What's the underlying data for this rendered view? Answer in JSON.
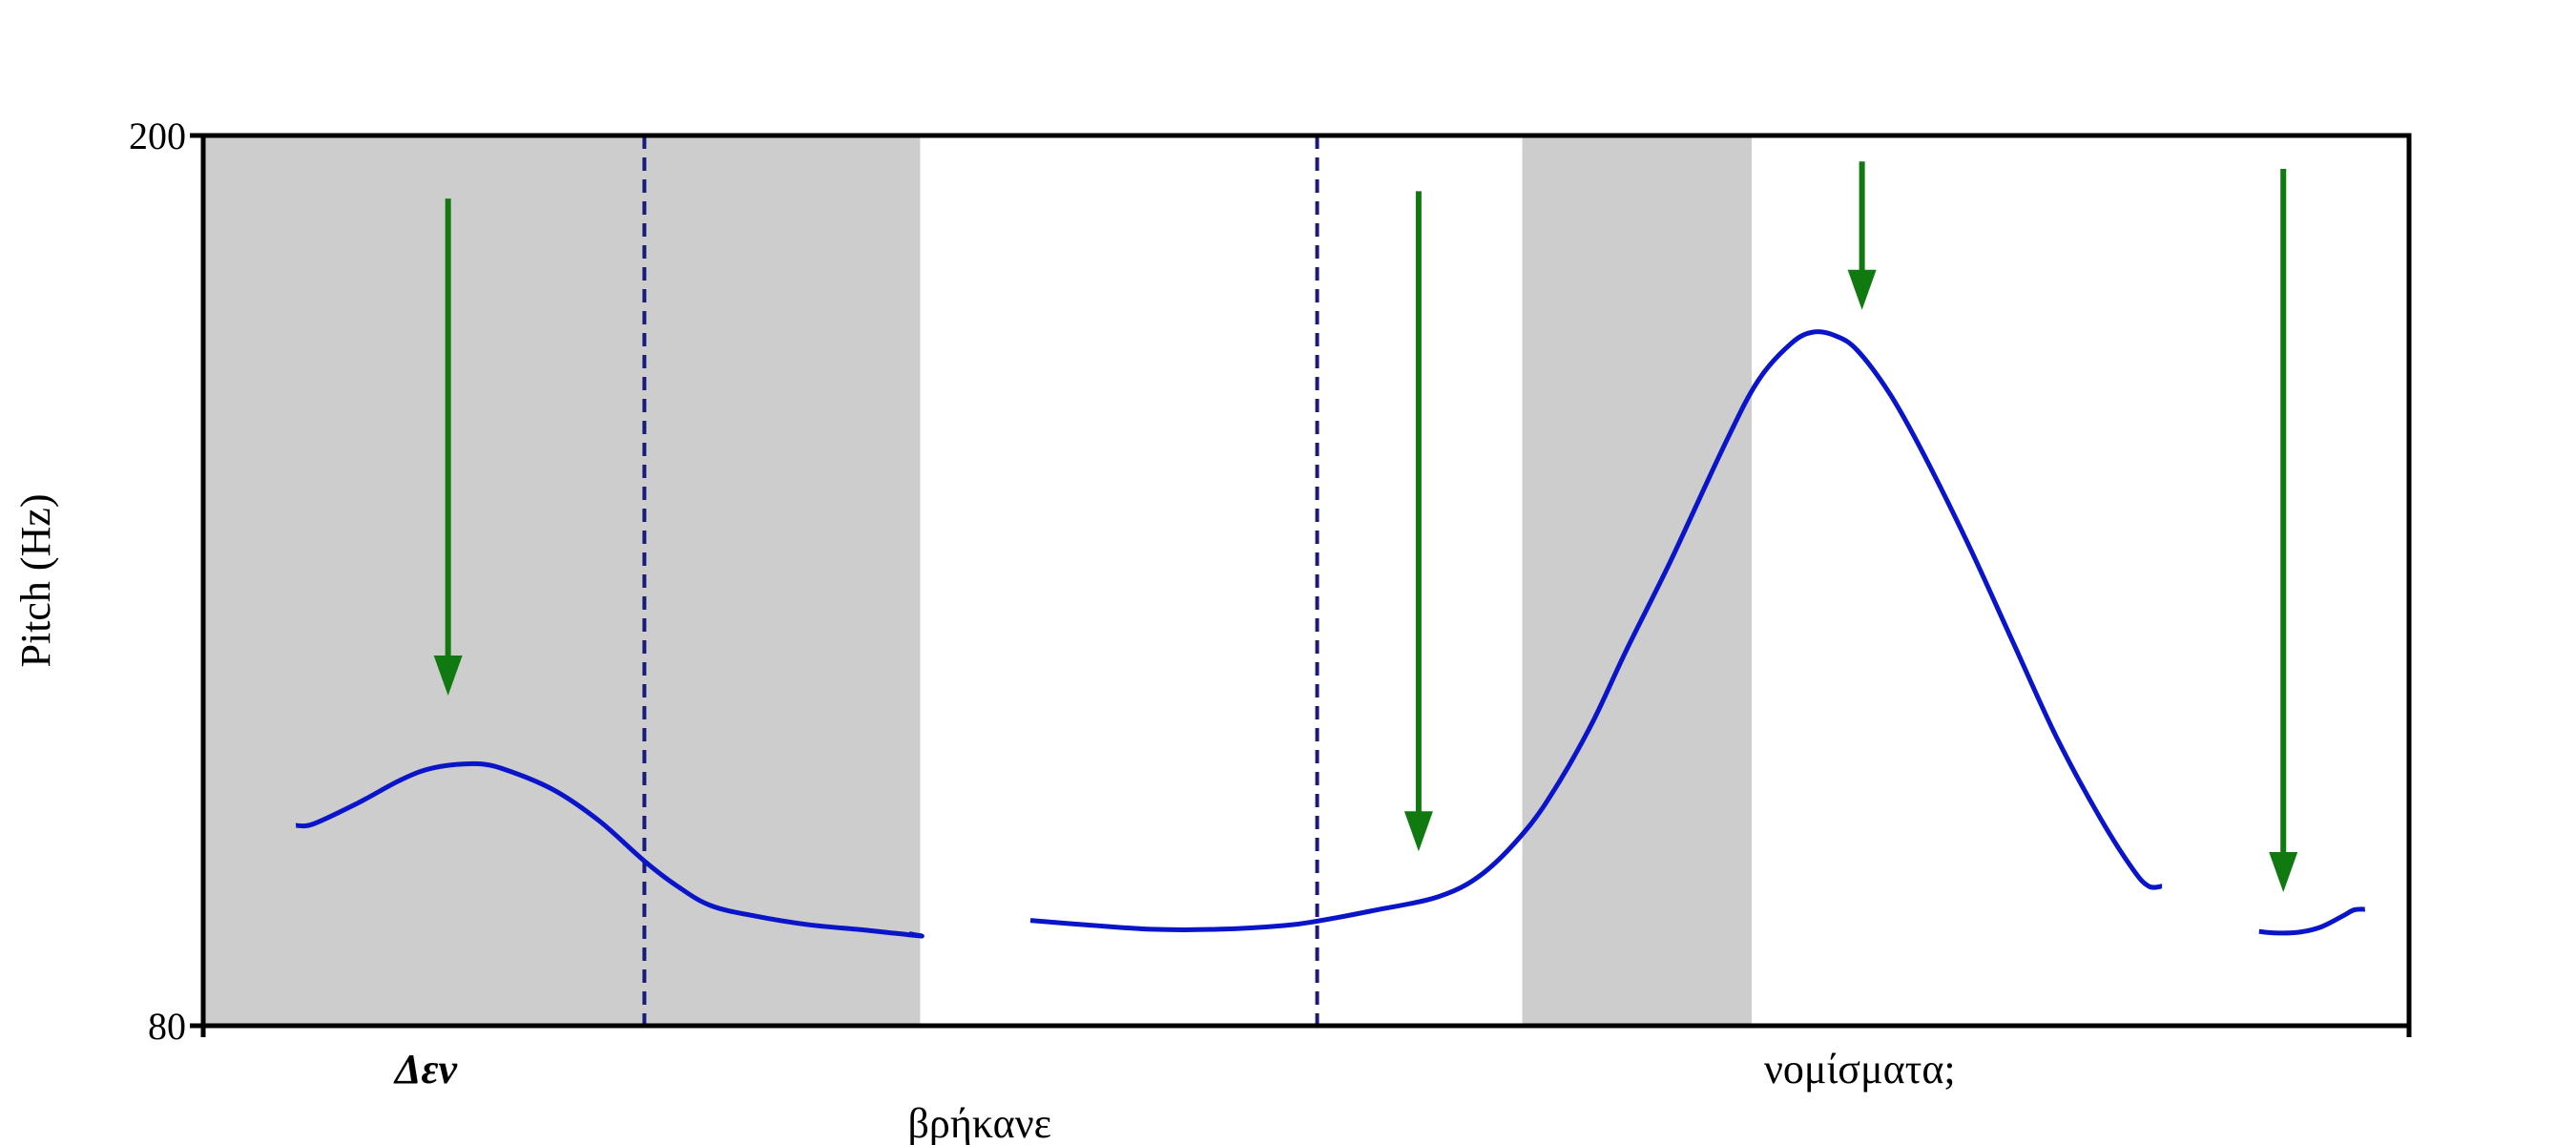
{
  "chart_data": {
    "type": "line",
    "title": "",
    "xlabel": "",
    "ylabel": "Pitch (Hz)",
    "xlim": [
      0,
      1
    ],
    "ylim": [
      80,
      200
    ],
    "yticks": [
      "80",
      "200"
    ],
    "grid": false,
    "legend": "none",
    "colors": {
      "contour": "#0a14c8",
      "boundary": "#1a1a7a",
      "shade": "#cdcdcd",
      "arrow": "#107a10"
    },
    "shaded_regions": [
      {
        "x_start": 0.0,
        "x_end": 0.325
      },
      {
        "x_start": 0.598,
        "x_end": 0.702
      }
    ],
    "boundaries": [
      0.2,
      0.505
    ],
    "series": [
      {
        "segments": [
          [
            [
              0.042,
              107
            ],
            [
              0.05,
              107.2
            ],
            [
              0.07,
              110
            ],
            [
              0.09,
              113.2
            ],
            [
              0.105,
              114.8
            ],
            [
              0.125,
              115.3
            ],
            [
              0.14,
              114.2
            ],
            [
              0.16,
              111.6
            ],
            [
              0.18,
              107.5
            ],
            [
              0.2,
              102.2
            ],
            [
              0.215,
              98.8
            ],
            [
              0.23,
              96.2
            ],
            [
              0.25,
              94.8
            ],
            [
              0.275,
              93.6
            ],
            [
              0.3,
              92.9
            ],
            [
              0.325,
              92.1
            ],
            [
              0.32,
              92.4
            ]
          ],
          [
            [
              0.375,
              94.2
            ],
            [
              0.4,
              93.6
            ],
            [
              0.43,
              93.0
            ],
            [
              0.46,
              93.0
            ],
            [
              0.49,
              93.5
            ],
            [
              0.505,
              94.1
            ],
            [
              0.53,
              95.5
            ],
            [
              0.56,
              97.4
            ],
            [
              0.58,
              100.5
            ],
            [
              0.6,
              106.5
            ],
            [
              0.615,
              113
            ],
            [
              0.63,
              121
            ],
            [
              0.645,
              130.5
            ],
            [
              0.665,
              142.5
            ],
            [
              0.69,
              158.5
            ],
            [
              0.705,
              167
            ],
            [
              0.72,
              172
            ],
            [
              0.73,
              173.5
            ],
            [
              0.74,
              173.0
            ],
            [
              0.75,
              171
            ],
            [
              0.765,
              165
            ],
            [
              0.78,
              157
            ],
            [
              0.8,
              145
            ],
            [
              0.82,
              132
            ],
            [
              0.84,
              119
            ],
            [
              0.86,
              108
            ],
            [
              0.875,
              101
            ],
            [
              0.882,
              98.8
            ],
            [
              0.888,
              98.8
            ]
          ],
          [
            [
              0.932,
              92.7
            ],
            [
              0.94,
              92.5
            ],
            [
              0.95,
              92.6
            ],
            [
              0.96,
              93.3
            ],
            [
              0.97,
              94.8
            ],
            [
              0.975,
              95.6
            ],
            [
              0.98,
              95.7
            ]
          ]
        ]
      }
    ],
    "arrows": [
      {
        "x": 0.111,
        "y_top": 191.5,
        "y_tip": 124.5
      },
      {
        "x": 0.551,
        "y_top": 192.5,
        "y_tip": 103.5
      },
      {
        "x": 0.752,
        "y_top": 196.5,
        "y_tip": 176.5
      },
      {
        "x": 0.943,
        "y_top": 195.5,
        "y_tip": 98
      }
    ],
    "word_labels": [
      {
        "text": "Δεν",
        "x": 0.101,
        "row": 1,
        "italic": true
      },
      {
        "text": "βρήκανε",
        "x": 0.352,
        "row": 2,
        "italic": false
      },
      {
        "text": "νομίσματα;",
        "x": 0.751,
        "row": 1,
        "italic": false
      }
    ]
  }
}
